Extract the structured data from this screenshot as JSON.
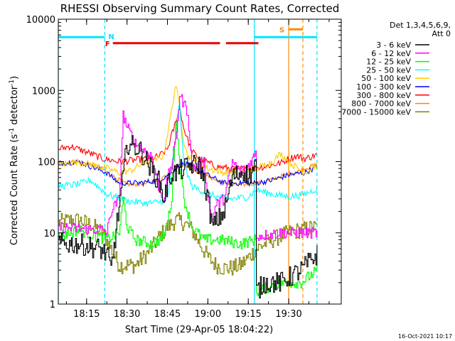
{
  "chart_data": {
    "type": "line",
    "title": "RHESSI Observing Summary Count Rates, Corrected",
    "xlabel": "Start Time (29-Apr-05 18:04:22)",
    "ylabel_main": "Corrected Count Rate (s",
    "ylabel_sup1": "-1",
    "ylabel_mid": " detector",
    "ylabel_sup2": "-1",
    "ylabel_end": ")",
    "footer_date": "16-Oct-2021 10:17",
    "y_scale": "log",
    "ylim": [
      1,
      10000
    ],
    "xlim_minutes": [
      -25,
      45
    ],
    "x_tick_values": [
      -18,
      -8,
      2,
      12,
      22,
      32
    ],
    "x_tick_labels": [
      "18:15",
      "18:30",
      "18:45",
      "19:00",
      "19:15",
      "19:30"
    ],
    "y_tick_values": [
      1,
      10,
      100,
      1000,
      10000
    ],
    "y_tick_labels": [
      "1",
      "10",
      "100",
      "1000",
      "10000"
    ],
    "legend": {
      "placement": "right",
      "header_line1": "Det 1,3,4,5,6,9,",
      "header_line2": "Att 0"
    },
    "series": [
      {
        "name": "3 - 6 keV",
        "color": "#000000",
        "mode": "hist",
        "noise": 0.15,
        "x": [
          -25,
          -20,
          -15,
          -13,
          -12,
          -8,
          -5,
          0,
          1,
          3,
          4,
          8,
          10,
          12,
          13,
          16,
          18,
          20,
          21,
          22,
          23.8,
          24,
          26,
          28,
          30,
          35,
          39
        ],
        "y": [
          7,
          7,
          6,
          5,
          3,
          180,
          150,
          50,
          30,
          70,
          70,
          90,
          90,
          30,
          12,
          20,
          60,
          70,
          75,
          60,
          90,
          1.5,
          2,
          2,
          2,
          3,
          5
        ]
      },
      {
        "name": "6 - 12 keV",
        "color": "#ff00ff",
        "mode": "hist",
        "noise": 0.08,
        "x": [
          -25,
          -14,
          -13,
          -12,
          -10,
          -9,
          -8,
          -6,
          -2,
          0,
          1,
          2,
          3,
          4,
          5,
          7,
          8,
          10,
          11,
          12,
          13,
          14,
          16,
          18,
          20,
          22,
          23.8,
          24,
          30,
          35,
          39
        ],
        "y": [
          12,
          11,
          10,
          20,
          30,
          450,
          300,
          180,
          120,
          40,
          30,
          60,
          90,
          200,
          850,
          500,
          80,
          90,
          100,
          30,
          15,
          25,
          30,
          100,
          70,
          90,
          130,
          9,
          10,
          10,
          10
        ]
      },
      {
        "name": "12 - 25 keV",
        "color": "#00ff00",
        "mode": "hist",
        "noise": 0.08,
        "x": [
          -25,
          -20,
          -13,
          -10,
          -9,
          -8,
          -6,
          -2,
          0,
          1,
          2,
          3,
          4,
          5,
          6,
          8,
          11,
          15,
          20,
          23.8,
          24,
          30,
          35,
          39
        ],
        "y": [
          9,
          11,
          8,
          10,
          30,
          12,
          8,
          7,
          8,
          9,
          15,
          30,
          400,
          90,
          30,
          12,
          8,
          8,
          7,
          8,
          1.5,
          2,
          2,
          3
        ]
      },
      {
        "name": "25 - 50 keV",
        "color": "#00ffff",
        "mode": "line",
        "noise": 0.05,
        "x": [
          -25,
          -20,
          -17,
          -13,
          -8,
          -3,
          0,
          2,
          4,
          5,
          6,
          8,
          10,
          14,
          18,
          22,
          24,
          28,
          32,
          36,
          39
        ],
        "y": [
          45,
          48,
          55,
          35,
          28,
          26,
          27,
          30,
          200,
          700,
          100,
          45,
          40,
          32,
          30,
          32,
          40,
          35,
          32,
          35,
          42
        ]
      },
      {
        "name": "50 - 100 keV",
        "color": "#ffcc00",
        "mode": "line",
        "noise": 0.05,
        "x": [
          -25,
          -20,
          -13,
          -10,
          -7,
          -4,
          -1,
          1,
          3,
          4,
          5,
          6,
          7,
          9,
          12,
          16,
          20,
          24,
          28,
          30,
          33,
          36,
          39
        ],
        "y": [
          90,
          100,
          80,
          70,
          75,
          95,
          105,
          120,
          500,
          1200,
          600,
          200,
          120,
          110,
          80,
          70,
          75,
          80,
          100,
          130,
          90,
          70,
          90
        ]
      },
      {
        "name": "100 - 300 keV",
        "color": "#0000ff",
        "mode": "line",
        "noise": 0.04,
        "x": [
          -25,
          -20,
          -13,
          -10,
          -5,
          0,
          3,
          5,
          7,
          10,
          13,
          16,
          20,
          24,
          28,
          32,
          36,
          39
        ],
        "y": [
          95,
          100,
          70,
          50,
          50,
          55,
          70,
          90,
          90,
          75,
          60,
          50,
          50,
          50,
          55,
          65,
          70,
          85
        ]
      },
      {
        "name": "300 - 800 keV",
        "color": "#ff0000",
        "mode": "line",
        "noise": 0.05,
        "x": [
          -25,
          -22,
          -20,
          -17,
          -14,
          -10,
          -6,
          -2,
          0,
          2,
          4,
          5,
          6,
          8,
          10,
          14,
          18,
          22,
          26,
          30,
          32,
          34,
          36,
          39
        ],
        "y": [
          150,
          165,
          150,
          130,
          110,
          100,
          105,
          110,
          120,
          150,
          350,
          600,
          300,
          140,
          110,
          85,
          80,
          80,
          85,
          95,
          110,
          120,
          110,
          125
        ]
      },
      {
        "name": "800 - 7000 keV",
        "color": "#ff8800",
        "mode": "line",
        "noise": 0.03,
        "x": [
          -25,
          -20,
          -15,
          -11,
          -8,
          -4,
          0,
          3,
          5,
          7,
          10,
          14,
          18,
          22,
          26,
          30,
          34,
          39
        ],
        "y": [
          95,
          100,
          85,
          60,
          48,
          48,
          55,
          75,
          90,
          85,
          70,
          55,
          47,
          48,
          52,
          62,
          72,
          92
        ]
      },
      {
        "name": "7000 - 15000 keV",
        "color": "#808000",
        "mode": "hist",
        "noise": 0.12,
        "x": [
          -25,
          -22,
          -20,
          -17,
          -14,
          -12,
          -10,
          -6,
          -4,
          -2,
          0,
          2,
          4,
          6,
          8,
          10,
          12,
          14,
          16,
          18,
          20,
          22,
          24,
          26,
          28,
          30,
          32,
          35,
          39
        ],
        "y": [
          14,
          15,
          15,
          13,
          10,
          6,
          3.5,
          3.5,
          4.5,
          6,
          9,
          12,
          15,
          14,
          11,
          7,
          4.5,
          3.5,
          3.2,
          3.2,
          3.5,
          4.5,
          6,
          7,
          8,
          9,
          10,
          11,
          12
        ]
      }
    ],
    "intervals": [
      {
        "label": "N",
        "color": "#00e5ff",
        "y_level": 5600,
        "segments": [
          [
            -25,
            -13.5
          ],
          [
            23.5,
            39
          ]
        ]
      },
      {
        "label": "F",
        "color": "#ee0000",
        "y_level": 4600,
        "segments": [
          [
            -11.5,
            15
          ],
          [
            16.5,
            24.5
          ]
        ]
      },
      {
        "label": "S",
        "color": "#ff8800",
        "y_level": 7200,
        "segments": [
          [
            32,
            35.5
          ]
        ]
      }
    ],
    "vlines": [
      {
        "x": -25,
        "color": "#00e5ff",
        "style": "solid"
      },
      {
        "x": -13.5,
        "color": "#00e5ff",
        "style": "dashed"
      },
      {
        "x": 23.5,
        "color": "#00e5ff",
        "style": "solid"
      },
      {
        "x": 39,
        "color": "#00e5ff",
        "style": "dashed"
      },
      {
        "x": 32,
        "color": "#ff8800",
        "style": "solid"
      },
      {
        "x": 35.5,
        "color": "#ff8800",
        "style": "dashed"
      }
    ]
  }
}
